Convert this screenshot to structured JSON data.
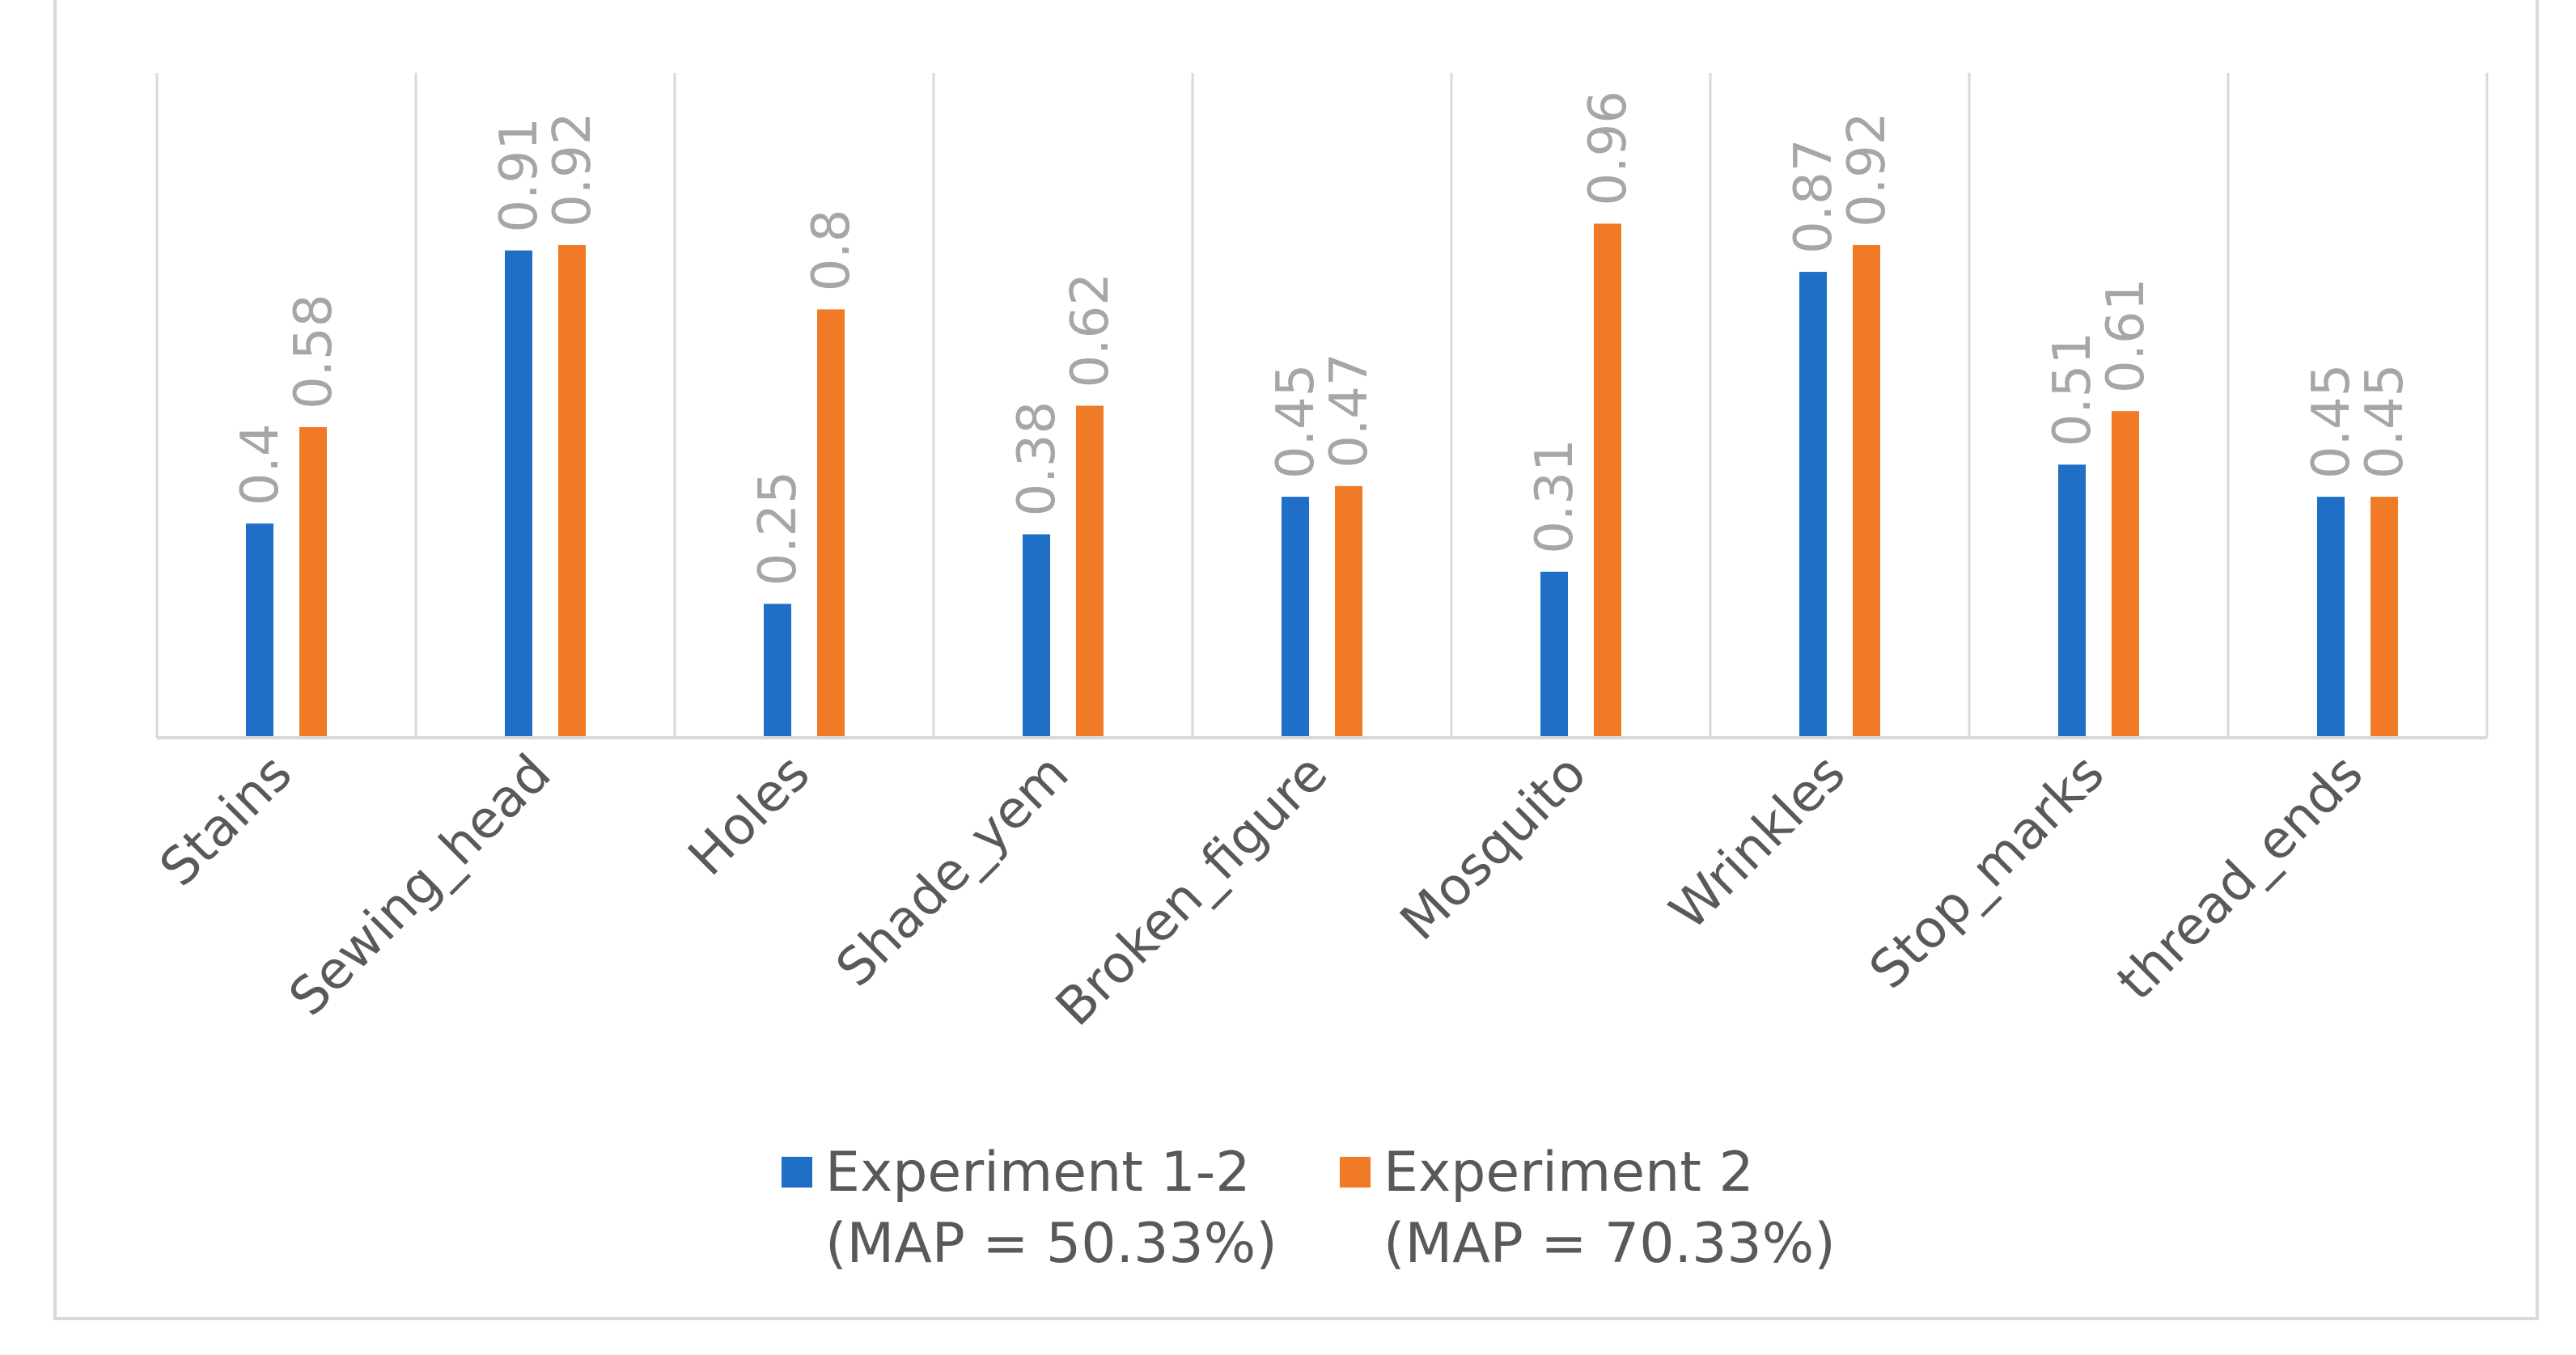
{
  "chart_data": {
    "type": "bar",
    "title": "",
    "xlabel": "",
    "ylabel": "",
    "ylim": [
      0,
      1.2
    ],
    "grid": "vertical separators",
    "legend_position": "bottom",
    "categories": [
      "Stains",
      "Sewing_head",
      "Holes",
      "Shade_yem",
      "Broken_figure",
      "Mosquito",
      "Wrinkles",
      "Stop_marks",
      "thread_ends"
    ],
    "series": [
      {
        "name": "Experiment 1-2",
        "name_line1": "Experiment 1-2",
        "name_line2": "(MAP = 50.33%)",
        "color": "#1f6fc6",
        "values": [
          0.4,
          0.91,
          0.25,
          0.38,
          0.45,
          0.31,
          0.87,
          0.51,
          0.45
        ]
      },
      {
        "name": "Experiment 2",
        "name_line1": "Experiment 2",
        "name_line2": "(MAP = 70.33%)",
        "color": "#f07a25",
        "values": [
          0.58,
          0.92,
          0.8,
          0.62,
          0.47,
          0.96,
          0.92,
          0.61,
          0.45
        ]
      }
    ]
  }
}
